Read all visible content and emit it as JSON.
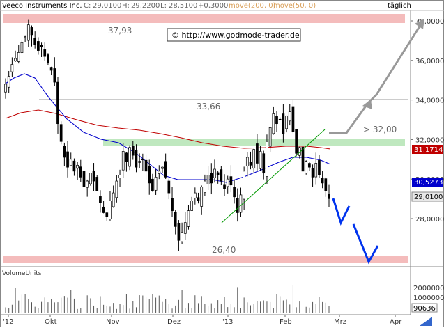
{
  "header": {
    "symbol": "Veeco Instruments Inc.",
    "close_label": "C:",
    "close": "29,0100",
    "high_label": "H:",
    "high": "29,2200",
    "low_label": "L:",
    "low": "28,5100",
    "change": "+0,3000",
    "ma_long": "move(200, 0)",
    "ma_short": "move(50, 0)",
    "interval": "täglich"
  },
  "watermark": "© http://www.godmode-trader.de",
  "annotations": {
    "resistance_high": "37,93",
    "resistance_mid": "33,66",
    "support_low": "26,40",
    "target": "> 32,00"
  },
  "volume_panel": {
    "title": "VolumeUnits"
  },
  "chart_data": {
    "type": "candlestick",
    "y_axis": {
      "ticks": [
        28,
        30,
        32,
        34,
        36,
        38
      ],
      "tick_labels": [
        "28,0000",
        "30,0000",
        "32,0000",
        "34,0000",
        "36,0000",
        "38,0000"
      ],
      "range": [
        26.2,
        38.4
      ],
      "position": "right"
    },
    "x_axis": {
      "ticks": [
        "'12",
        "Okt",
        "Nov",
        "Dez",
        "'13",
        "Feb",
        "Mrz",
        "Apr"
      ]
    },
    "price_tags": {
      "ma200": "31,1714",
      "ma50": "30,5273",
      "last": "29,0100"
    },
    "colors": {
      "ma200": "#c00000",
      "ma50": "#0000cc",
      "resistance_band": "#f4b8b8",
      "support_band": "#b8e8b8",
      "trend": "#009900",
      "forecast_down": "#0033ee",
      "forecast_up": "#999999"
    },
    "levels": {
      "resistance_high": 37.93,
      "resistance_mid": 33.66,
      "support_low": 26.4,
      "breakout_zone": 31.5
    },
    "volume_axis": {
      "tick_labels": [
        "2000000",
        "1000000"
      ],
      "last": "90636"
    },
    "candles_close": [
      34.8,
      35.2,
      35.8,
      36.1,
      36.4,
      36.9,
      37.2,
      37.8,
      37.3,
      36.8,
      36.5,
      36.7,
      36.2,
      35.9,
      35.5,
      34.9,
      32.8,
      31.9,
      31.1,
      30.6,
      31.0,
      30.4,
      30.7,
      30.1,
      29.6,
      29.9,
      30.3,
      29.9,
      29.4,
      28.8,
      28.3,
      28.1,
      28.9,
      29.3,
      29.9,
      30.2,
      31.4,
      30.9,
      31.6,
      31.2,
      30.6,
      30.9,
      31.0,
      30.4,
      29.8,
      29.4,
      30.1,
      30.4,
      30.6,
      30.1,
      29.3,
      28.4,
      27.6,
      26.9,
      27.3,
      27.8,
      28.4,
      28.9,
      29.3,
      28.9,
      29.6,
      29.9,
      30.2,
      29.8,
      30.5,
      30.2,
      29.9,
      29.5,
      30.0,
      29.7,
      29.1,
      28.3,
      29.2,
      30.4,
      31.1,
      30.7,
      31.5,
      30.8,
      31.4,
      30.3,
      31.9,
      32.6,
      33.3,
      32.8,
      33.0,
      32.3,
      33.2,
      33.4,
      32.4,
      31.3,
      31.6,
      30.4,
      30.9,
      30.6,
      30.1,
      30.8,
      30.2,
      29.8,
      29.4,
      29.01
    ]
  }
}
